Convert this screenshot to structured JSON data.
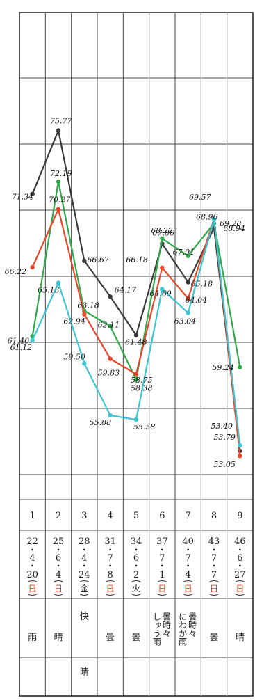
{
  "chart_data": {
    "type": "line",
    "title": "",
    "xlabel": "",
    "ylabel": "",
    "categories": [
      "1",
      "2",
      "3",
      "4",
      "5",
      "6",
      "7",
      "8",
      "9"
    ],
    "series": [
      {
        "color": "#3a3a3a",
        "values": [
          71.34,
          75.77,
          66.67,
          64.17,
          61.48,
          67.86,
          65.18,
          68.96,
          53.4
        ],
        "labels": [
          "71.34",
          "75.77",
          "66.67",
          "64.17",
          "61.48",
          "67.86",
          "65.18",
          "68.96",
          "53.40"
        ]
      },
      {
        "color": "#2fa84a",
        "values": [
          61.4,
          72.19,
          63.18,
          62.11,
          58.38,
          68.22,
          67.01,
          69.28,
          59.24
        ],
        "labels": [
          "61.40",
          "72.19",
          "63.18",
          "62.11",
          "58.38",
          "68.22",
          "67.01",
          "69.28",
          "59.24"
        ]
      },
      {
        "color": "#e8452a",
        "values": [
          66.22,
          70.27,
          62.94,
          59.83,
          58.75,
          66.18,
          64.04,
          69.57,
          53.05
        ],
        "labels": [
          "66.22",
          "70.27",
          "62.94",
          "59.83",
          "58.75",
          "66.18",
          "64.04",
          "",
          "53.05"
        ]
      },
      {
        "color": "#3cc6d4",
        "values": [
          61.12,
          65.13,
          59.5,
          55.88,
          55.58,
          64.69,
          63.04,
          69.57,
          53.79
        ],
        "labels": [
          "61.12",
          "65.13",
          "59.50",
          "55.88",
          "55.58",
          "64.69",
          "63.04",
          "69.57",
          "53.79"
        ]
      }
    ],
    "extra_labels": [
      "68.94"
    ],
    "ylim": [
      50,
      84
    ],
    "grid": true,
    "legend": "none"
  },
  "table": {
    "numbers": [
      "1",
      "2",
      "3",
      "4",
      "5",
      "6",
      "7",
      "8",
      "9"
    ],
    "dates": [
      {
        "top": [
          "22",
          "4",
          "20"
        ],
        "day": "日",
        "holiday": true
      },
      {
        "top": [
          "25",
          "6",
          "4"
        ],
        "day": "日",
        "holiday": true
      },
      {
        "top": [
          "28",
          "4",
          "24"
        ],
        "day": "金",
        "holiday": false
      },
      {
        "top": [
          "31",
          "7",
          "8"
        ],
        "day": "日",
        "holiday": true
      },
      {
        "top": [
          "34",
          "6",
          "2"
        ],
        "day": "火",
        "holiday": false
      },
      {
        "top": [
          "37",
          "7",
          "1"
        ],
        "day": "日",
        "holiday": true
      },
      {
        "top": [
          "40",
          "7",
          "4"
        ],
        "day": "日",
        "holiday": true
      },
      {
        "top": [
          "43",
          "7",
          "7"
        ],
        "day": "日",
        "holiday": true
      },
      {
        "top": [
          "46",
          "6",
          "27"
        ],
        "day": "日",
        "holiday": true
      }
    ],
    "weather": [
      [
        "雨"
      ],
      [
        "晴"
      ],
      [
        "快",
        "晴"
      ],
      [
        "曇"
      ],
      [
        "曇"
      ],
      [
        "曇時々",
        "しゅう雨"
      ],
      [
        "曇時々",
        "にわか雨"
      ],
      [
        "曇"
      ],
      [
        "晴"
      ]
    ]
  }
}
